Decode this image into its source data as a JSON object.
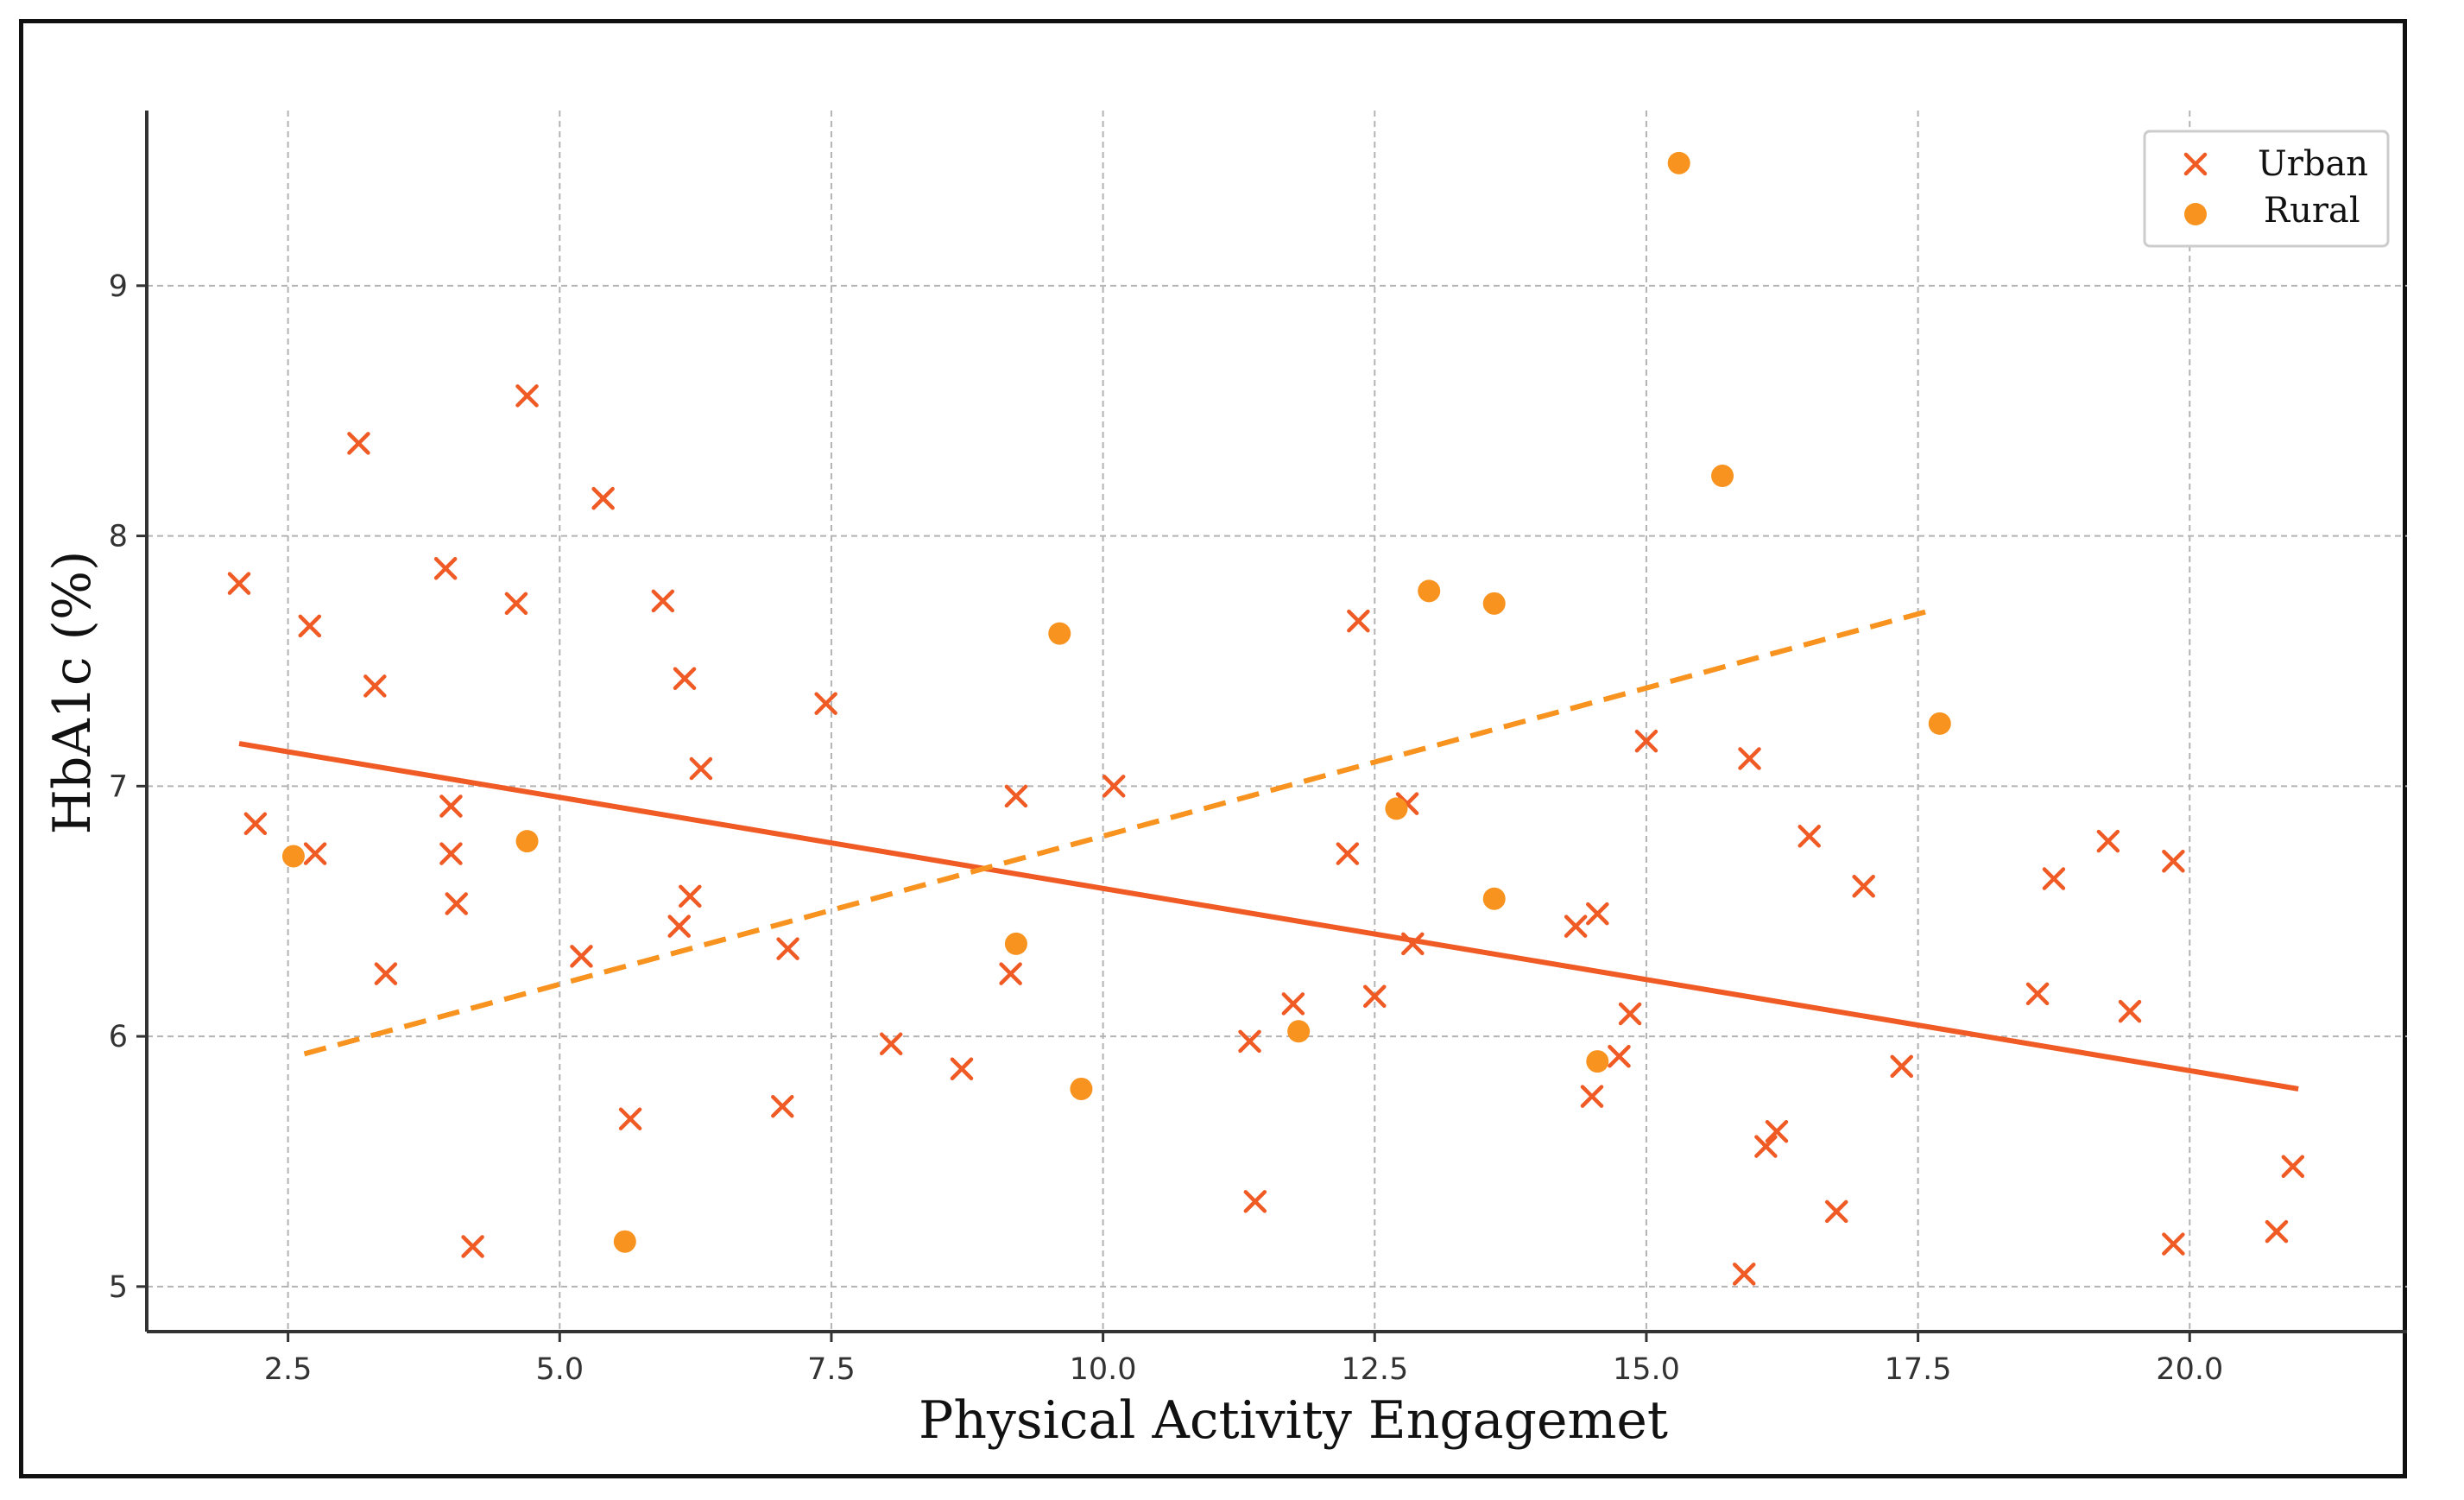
{
  "chart_data": {
    "type": "scatter",
    "title": "",
    "xlabel": "Physical Activity Engagemet",
    "ylabel": "HbA1c (%)",
    "xlim": [
      1.2,
      22.0
    ],
    "ylim": [
      4.82,
      9.7
    ],
    "grid": true,
    "legend_position": "top-right",
    "xticks": [
      2.5,
      5.0,
      7.5,
      10.0,
      12.5,
      15.0,
      17.5,
      20.0
    ],
    "xtick_labels": [
      "2.5",
      "5.0",
      "7.5",
      "10.0",
      "12.5",
      "15.0",
      "17.5",
      "20.0"
    ],
    "yticks": [
      5,
      6,
      7,
      8,
      9
    ],
    "ytick_labels": [
      "5",
      "6",
      "7",
      "8",
      "9"
    ],
    "colors": {
      "urban": "#f05a24",
      "rural": "#f7931e",
      "grid": "#b3b3b3",
      "axis": "#333333"
    },
    "series": [
      {
        "name": "Urban",
        "marker": "x",
        "points": [
          [
            2.05,
            7.81
          ],
          [
            2.2,
            6.85
          ],
          [
            2.7,
            7.64
          ],
          [
            2.75,
            6.73
          ],
          [
            3.15,
            8.37
          ],
          [
            3.3,
            7.4
          ],
          [
            3.4,
            6.25
          ],
          [
            3.95,
            7.87
          ],
          [
            4.0,
            6.92
          ],
          [
            4.0,
            6.73
          ],
          [
            4.05,
            6.53
          ],
          [
            4.2,
            5.16
          ],
          [
            4.6,
            7.73
          ],
          [
            4.7,
            8.56
          ],
          [
            5.2,
            6.32
          ],
          [
            5.4,
            8.15
          ],
          [
            5.65,
            5.67
          ],
          [
            5.95,
            7.74
          ],
          [
            6.1,
            6.44
          ],
          [
            6.15,
            7.43
          ],
          [
            6.2,
            6.56
          ],
          [
            6.3,
            7.07
          ],
          [
            7.05,
            5.72
          ],
          [
            7.1,
            6.35
          ],
          [
            7.45,
            7.33
          ],
          [
            8.05,
            5.97
          ],
          [
            8.7,
            5.87
          ],
          [
            9.15,
            6.25
          ],
          [
            9.2,
            6.96
          ],
          [
            10.1,
            7.0
          ],
          [
            11.35,
            5.98
          ],
          [
            11.4,
            5.34
          ],
          [
            11.75,
            6.13
          ],
          [
            12.25,
            6.73
          ],
          [
            12.35,
            7.66
          ],
          [
            12.5,
            6.16
          ],
          [
            12.8,
            6.93
          ],
          [
            12.85,
            6.37
          ],
          [
            14.35,
            6.44
          ],
          [
            14.5,
            5.76
          ],
          [
            14.55,
            6.49
          ],
          [
            14.75,
            5.92
          ],
          [
            14.85,
            6.09
          ],
          [
            15.0,
            7.18
          ],
          [
            15.9,
            5.05
          ],
          [
            15.95,
            7.11
          ],
          [
            16.1,
            5.56
          ],
          [
            16.2,
            5.62
          ],
          [
            16.5,
            6.8
          ],
          [
            16.75,
            5.3
          ],
          [
            17.0,
            6.6
          ],
          [
            17.35,
            5.88
          ],
          [
            18.6,
            6.17
          ],
          [
            18.75,
            6.63
          ],
          [
            19.25,
            6.78
          ],
          [
            19.45,
            6.1
          ],
          [
            19.85,
            6.7
          ],
          [
            19.85,
            5.17
          ],
          [
            20.8,
            5.22
          ],
          [
            20.95,
            5.48
          ]
        ],
        "trend": {
          "x": [
            2.05,
            21.0
          ],
          "y": [
            7.17,
            5.79
          ],
          "style": "solid"
        }
      },
      {
        "name": "Rural",
        "marker": "o",
        "points": [
          [
            2.55,
            6.72
          ],
          [
            4.7,
            6.78
          ],
          [
            5.6,
            5.18
          ],
          [
            9.2,
            6.37
          ],
          [
            9.6,
            7.61
          ],
          [
            9.8,
            5.79
          ],
          [
            11.8,
            6.02
          ],
          [
            12.7,
            6.91
          ],
          [
            13.0,
            7.78
          ],
          [
            13.6,
            6.55
          ],
          [
            13.6,
            7.73
          ],
          [
            14.55,
            5.9
          ],
          [
            15.3,
            9.49
          ],
          [
            15.7,
            8.24
          ],
          [
            17.7,
            7.25
          ]
        ],
        "trend": {
          "x": [
            2.65,
            17.6
          ],
          "y": [
            5.93,
            7.7
          ],
          "style": "dashed"
        }
      }
    ]
  }
}
